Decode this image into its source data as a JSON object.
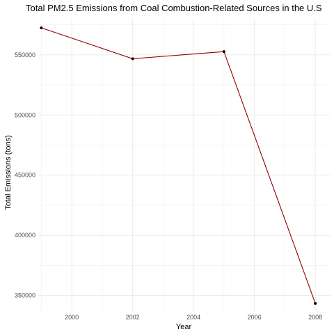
{
  "chart_data": {
    "type": "line",
    "title": "Total PM2.5 Emissions from Coal Combustion-Related Sources in the U.S",
    "xlabel": "Year",
    "ylabel": "Total Emissions (tons)",
    "x": [
      1999,
      2002,
      2005,
      2008
    ],
    "values": [
      572500,
      546800,
      552700,
      343400
    ],
    "xlim": [
      1998.9,
      2008.5
    ],
    "ylim": [
      337000,
      580000
    ],
    "x_ticks": [
      2000,
      2002,
      2004,
      2006,
      2008
    ],
    "x_tick_labels": [
      "2000",
      "2002",
      "2004",
      "2006",
      "2008"
    ],
    "y_ticks": [
      350000,
      400000,
      450000,
      500000,
      550000
    ],
    "y_tick_labels": [
      "350000",
      "400000",
      "450000",
      "500000",
      "550000"
    ],
    "grid": true,
    "theme": "minimal",
    "line_color": "#8b0000",
    "point_color": "#000000",
    "grid_color": "#ebebeb"
  }
}
